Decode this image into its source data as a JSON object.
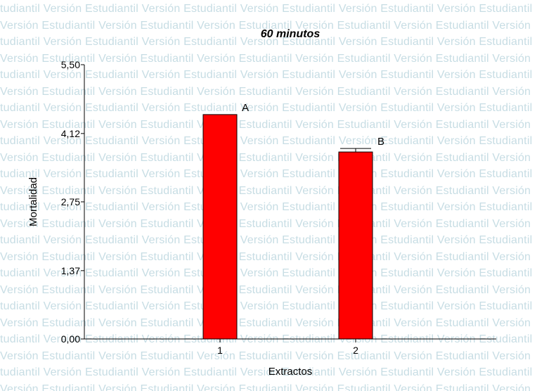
{
  "watermark": {
    "text_even": "tudiantil   Versión Estudiantil   Versión Estudiantil   Versión Estudiantil   Versión Estudiantil   Versión Estudiantil",
    "text_odd": "Versión Estudiantil   Versión Estudiantil   Versión Estudiantil   Versión Estudiantil   Versión Estudiantil   Versión",
    "color": "#c7dde4"
  },
  "chart_data": {
    "type": "bar",
    "title": "60 minutos",
    "xlabel": "Extractos",
    "ylabel": "Mortalidad",
    "categories": [
      "1",
      "2"
    ],
    "values": [
      4.5,
      3.75
    ],
    "error_high": [
      null,
      3.82
    ],
    "bar_labels": [
      "A",
      "B"
    ],
    "yticks": [
      "0,00",
      "1,37",
      "2,75",
      "4,12",
      "5,50"
    ],
    "ylim": [
      0,
      5.5
    ],
    "bar_color": "#ff0000",
    "grid": false
  }
}
